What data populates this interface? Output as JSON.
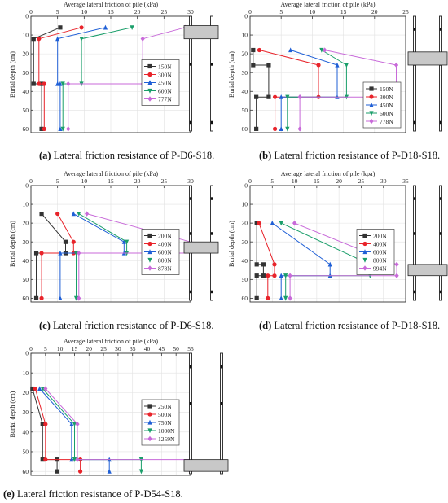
{
  "x_axis_label": "Average lateral friction of pile (kPa)",
  "y_axis_label": "Burial depth (cm)",
  "chart_data": [
    {
      "id": "a",
      "type": "line",
      "label": "(a)",
      "caption": "Lateral friction resistance of P-D6-S18.",
      "x_axis_label": "Average lateral friction of pile (kPa)",
      "y_axis_label": "Burial depth (cm)",
      "xlim": [
        0,
        30
      ],
      "ylim": [
        0,
        62
      ],
      "xticks": [
        0,
        5,
        10,
        15,
        20,
        25,
        30
      ],
      "yticks": [
        0,
        10,
        20,
        30,
        40,
        50,
        60
      ],
      "legend_placement": "right",
      "grid": true,
      "pile_band": [
        5,
        12
      ],
      "series": [
        {
          "name": "150N",
          "color": "#333333",
          "marker": "square",
          "points": [
            [
              5.5,
              6
            ],
            [
              0.5,
              12
            ],
            [
              0.5,
              36
            ],
            [
              2.0,
              36
            ],
            [
              2.0,
              60
            ]
          ]
        },
        {
          "name": "300N",
          "color": "#e8232a",
          "marker": "circle",
          "points": [
            [
              9.5,
              6
            ],
            [
              1.5,
              12
            ],
            [
              1.5,
              36
            ],
            [
              2.5,
              36
            ],
            [
              2.5,
              60
            ]
          ]
        },
        {
          "name": "450N",
          "color": "#1f5fd6",
          "marker": "triangle-up",
          "points": [
            [
              14.0,
              6
            ],
            [
              5.0,
              12
            ],
            [
              5.0,
              36
            ],
            [
              5.5,
              36
            ],
            [
              5.5,
              60
            ]
          ]
        },
        {
          "name": "600N",
          "color": "#1a9e6a",
          "marker": "triangle-down",
          "points": [
            [
              19.0,
              6
            ],
            [
              9.5,
              12
            ],
            [
              9.5,
              36
            ],
            [
              6.0,
              36
            ],
            [
              6.0,
              60
            ]
          ]
        },
        {
          "name": "777N",
          "color": "#c86ad9",
          "marker": "diamond",
          "points": [
            [
              29.0,
              6
            ],
            [
              21.0,
              12
            ],
            [
              21.0,
              36
            ],
            [
              7.0,
              36
            ],
            [
              7.0,
              60
            ]
          ]
        }
      ]
    },
    {
      "id": "b",
      "type": "line",
      "label": "(b)",
      "caption": "Lateral friction resistance of P-D18-S18.",
      "x_axis_label": "Average lateral friction of pile (kPa)",
      "y_axis_label": "Burial depth (cm)",
      "xlim": [
        0,
        25
      ],
      "ylim": [
        0,
        62
      ],
      "xticks": [
        0,
        5,
        10,
        15,
        20,
        25
      ],
      "yticks": [
        0,
        10,
        20,
        30,
        40,
        50,
        60
      ],
      "legend_placement": "bottom-right",
      "grid": true,
      "pile_band": [
        19,
        26
      ],
      "series": [
        {
          "name": "150N",
          "color": "#333333",
          "marker": "square",
          "points": [
            [
              0.5,
              18
            ],
            [
              0.5,
              26
            ],
            [
              3.0,
              26
            ],
            [
              3.0,
              43
            ],
            [
              1.0,
              43
            ],
            [
              1.0,
              60
            ]
          ]
        },
        {
          "name": "300N",
          "color": "#e8232a",
          "marker": "circle",
          "points": [
            [
              1.5,
              18
            ],
            [
              11.0,
              26
            ],
            [
              11.0,
              43
            ],
            [
              4.0,
              43
            ],
            [
              4.0,
              60
            ]
          ]
        },
        {
          "name": "450N",
          "color": "#1f5fd6",
          "marker": "triangle-up",
          "points": [
            [
              6.5,
              18
            ],
            [
              14.0,
              26
            ],
            [
              14.0,
              43
            ],
            [
              5.0,
              43
            ],
            [
              5.0,
              60
            ]
          ]
        },
        {
          "name": "600N",
          "color": "#1a9e6a",
          "marker": "triangle-down",
          "points": [
            [
              11.5,
              18
            ],
            [
              15.5,
              26
            ],
            [
              15.5,
              43
            ],
            [
              6.0,
              43
            ],
            [
              6.0,
              60
            ]
          ]
        },
        {
          "name": "778N",
          "color": "#c86ad9",
          "marker": "diamond",
          "points": [
            [
              12.0,
              18
            ],
            [
              23.5,
              26
            ],
            [
              23.5,
              43
            ],
            [
              8.0,
              43
            ],
            [
              8.0,
              60
            ]
          ]
        }
      ]
    },
    {
      "id": "c",
      "type": "line",
      "label": "(c)",
      "caption": "Lateral friction resistance of P-D6-S18.",
      "x_axis_label": "Average lateral friction of pile (kPa)",
      "y_axis_label": "Burial depth (cm)",
      "xlim": [
        0,
        30
      ],
      "ylim": [
        0,
        62
      ],
      "xticks": [
        0,
        5,
        10,
        15,
        20,
        25,
        30
      ],
      "yticks": [
        0,
        10,
        20,
        30,
        40,
        50,
        60
      ],
      "legend_placement": "right",
      "grid": true,
      "pile_band": [
        30,
        36
      ],
      "series": [
        {
          "name": "200N",
          "color": "#333333",
          "marker": "square",
          "points": [
            [
              2.0,
              15
            ],
            [
              6.5,
              30
            ],
            [
              6.5,
              36
            ],
            [
              1.0,
              36
            ],
            [
              1.0,
              60
            ]
          ]
        },
        {
          "name": "400N",
          "color": "#e8232a",
          "marker": "circle",
          "points": [
            [
              5.0,
              15
            ],
            [
              8.0,
              30
            ],
            [
              8.0,
              36
            ],
            [
              2.0,
              36
            ],
            [
              2.0,
              60
            ]
          ]
        },
        {
          "name": "600N",
          "color": "#1f5fd6",
          "marker": "triangle-up",
          "points": [
            [
              8.0,
              15
            ],
            [
              17.5,
              30
            ],
            [
              17.5,
              36
            ],
            [
              5.5,
              36
            ],
            [
              5.5,
              60
            ]
          ]
        },
        {
          "name": "800N",
          "color": "#1a9e6a",
          "marker": "triangle-down",
          "points": [
            [
              9.0,
              15
            ],
            [
              18.0,
              30
            ],
            [
              18.0,
              36
            ],
            [
              8.5,
              36
            ],
            [
              8.5,
              60
            ]
          ]
        },
        {
          "name": "878N",
          "color": "#c86ad9",
          "marker": "diamond",
          "points": [
            [
              10.5,
              15
            ],
            [
              30.0,
              30
            ],
            [
              30.0,
              36
            ],
            [
              9.0,
              36
            ],
            [
              9.0,
              60
            ]
          ]
        }
      ]
    },
    {
      "id": "d",
      "type": "line",
      "label": "(d)",
      "caption": "Lateral friction resistance of P-D18-S18.",
      "x_axis_label": "Average lateral friction of pile (kpa)",
      "y_axis_label": "Burial depth (cm)",
      "xlim": [
        0,
        35
      ],
      "ylim": [
        0,
        62
      ],
      "xticks": [
        0,
        5,
        10,
        15,
        20,
        25,
        30,
        35
      ],
      "yticks": [
        0,
        10,
        20,
        30,
        40,
        50,
        60
      ],
      "legend_placement": "right",
      "grid": true,
      "pile_band": [
        42,
        48
      ],
      "series": [
        {
          "name": "200N",
          "color": "#333333",
          "marker": "square",
          "points": [
            [
              1.5,
              20
            ],
            [
              1.5,
              42
            ],
            [
              3.0,
              42
            ],
            [
              3.0,
              48
            ],
            [
              1.5,
              48
            ],
            [
              1.5,
              60
            ]
          ]
        },
        {
          "name": "400N",
          "color": "#e8232a",
          "marker": "circle",
          "points": [
            [
              2.0,
              20
            ],
            [
              5.5,
              42
            ],
            [
              5.5,
              48
            ],
            [
              4.0,
              48
            ],
            [
              4.0,
              60
            ]
          ]
        },
        {
          "name": "600N",
          "color": "#1f5fd6",
          "marker": "triangle-up",
          "points": [
            [
              5.0,
              20
            ],
            [
              18.0,
              42
            ],
            [
              18.0,
              48
            ],
            [
              7.0,
              48
            ],
            [
              7.0,
              60
            ]
          ]
        },
        {
          "name": "800N",
          "color": "#1a9e6a",
          "marker": "triangle-down",
          "points": [
            [
              7.0,
              20
            ],
            [
              27.0,
              42
            ],
            [
              27.0,
              48
            ],
            [
              8.0,
              48
            ],
            [
              8.0,
              60
            ]
          ]
        },
        {
          "name": "994N",
          "color": "#c86ad9",
          "marker": "diamond",
          "points": [
            [
              10.0,
              20
            ],
            [
              33.0,
              42
            ],
            [
              33.0,
              48
            ],
            [
              9.0,
              48
            ],
            [
              9.0,
              60
            ]
          ]
        }
      ]
    },
    {
      "id": "e",
      "type": "line",
      "label": "(e)",
      "caption": "Lateral friction resistance of P-D54-S18.",
      "x_axis_label": "Average lateral friction of pile (kPa)",
      "y_axis_label": "Burial depth (cm)",
      "xlim": [
        0,
        55
      ],
      "ylim": [
        0,
        62
      ],
      "xticks": [
        0,
        5,
        10,
        15,
        20,
        25,
        30,
        35,
        40,
        45,
        50,
        55
      ],
      "yticks": [
        0,
        10,
        20,
        30,
        40,
        50,
        60
      ],
      "legend_placement": "right",
      "grid": true,
      "pile_band": [
        54,
        60
      ],
      "series": [
        {
          "name": "250N",
          "color": "#333333",
          "marker": "square",
          "points": [
            [
              0.5,
              18
            ],
            [
              4.0,
              36
            ],
            [
              4.0,
              54
            ],
            [
              9.0,
              54
            ],
            [
              9.0,
              60
            ]
          ]
        },
        {
          "name": "500N",
          "color": "#e8232a",
          "marker": "circle",
          "points": [
            [
              1.5,
              18
            ],
            [
              5.0,
              36
            ],
            [
              5.0,
              54
            ],
            [
              17.0,
              54
            ],
            [
              17.0,
              60
            ]
          ]
        },
        {
          "name": "750N",
          "color": "#1f5fd6",
          "marker": "triangle-up",
          "points": [
            [
              3.0,
              18
            ],
            [
              14.0,
              36
            ],
            [
              14.0,
              54
            ],
            [
              27.0,
              54
            ],
            [
              27.0,
              60
            ]
          ]
        },
        {
          "name": "1000N",
          "color": "#1a9e6a",
          "marker": "triangle-down",
          "points": [
            [
              4.0,
              18
            ],
            [
              15.0,
              36
            ],
            [
              15.0,
              54
            ],
            [
              38.0,
              54
            ],
            [
              38.0,
              60
            ]
          ]
        },
        {
          "name": "1259N",
          "color": "#c86ad9",
          "marker": "diamond",
          "points": [
            [
              5.0,
              18
            ],
            [
              16.0,
              36
            ],
            [
              16.0,
              54
            ],
            [
              55.0,
              54
            ],
            [
              55.0,
              60
            ]
          ]
        }
      ]
    }
  ]
}
